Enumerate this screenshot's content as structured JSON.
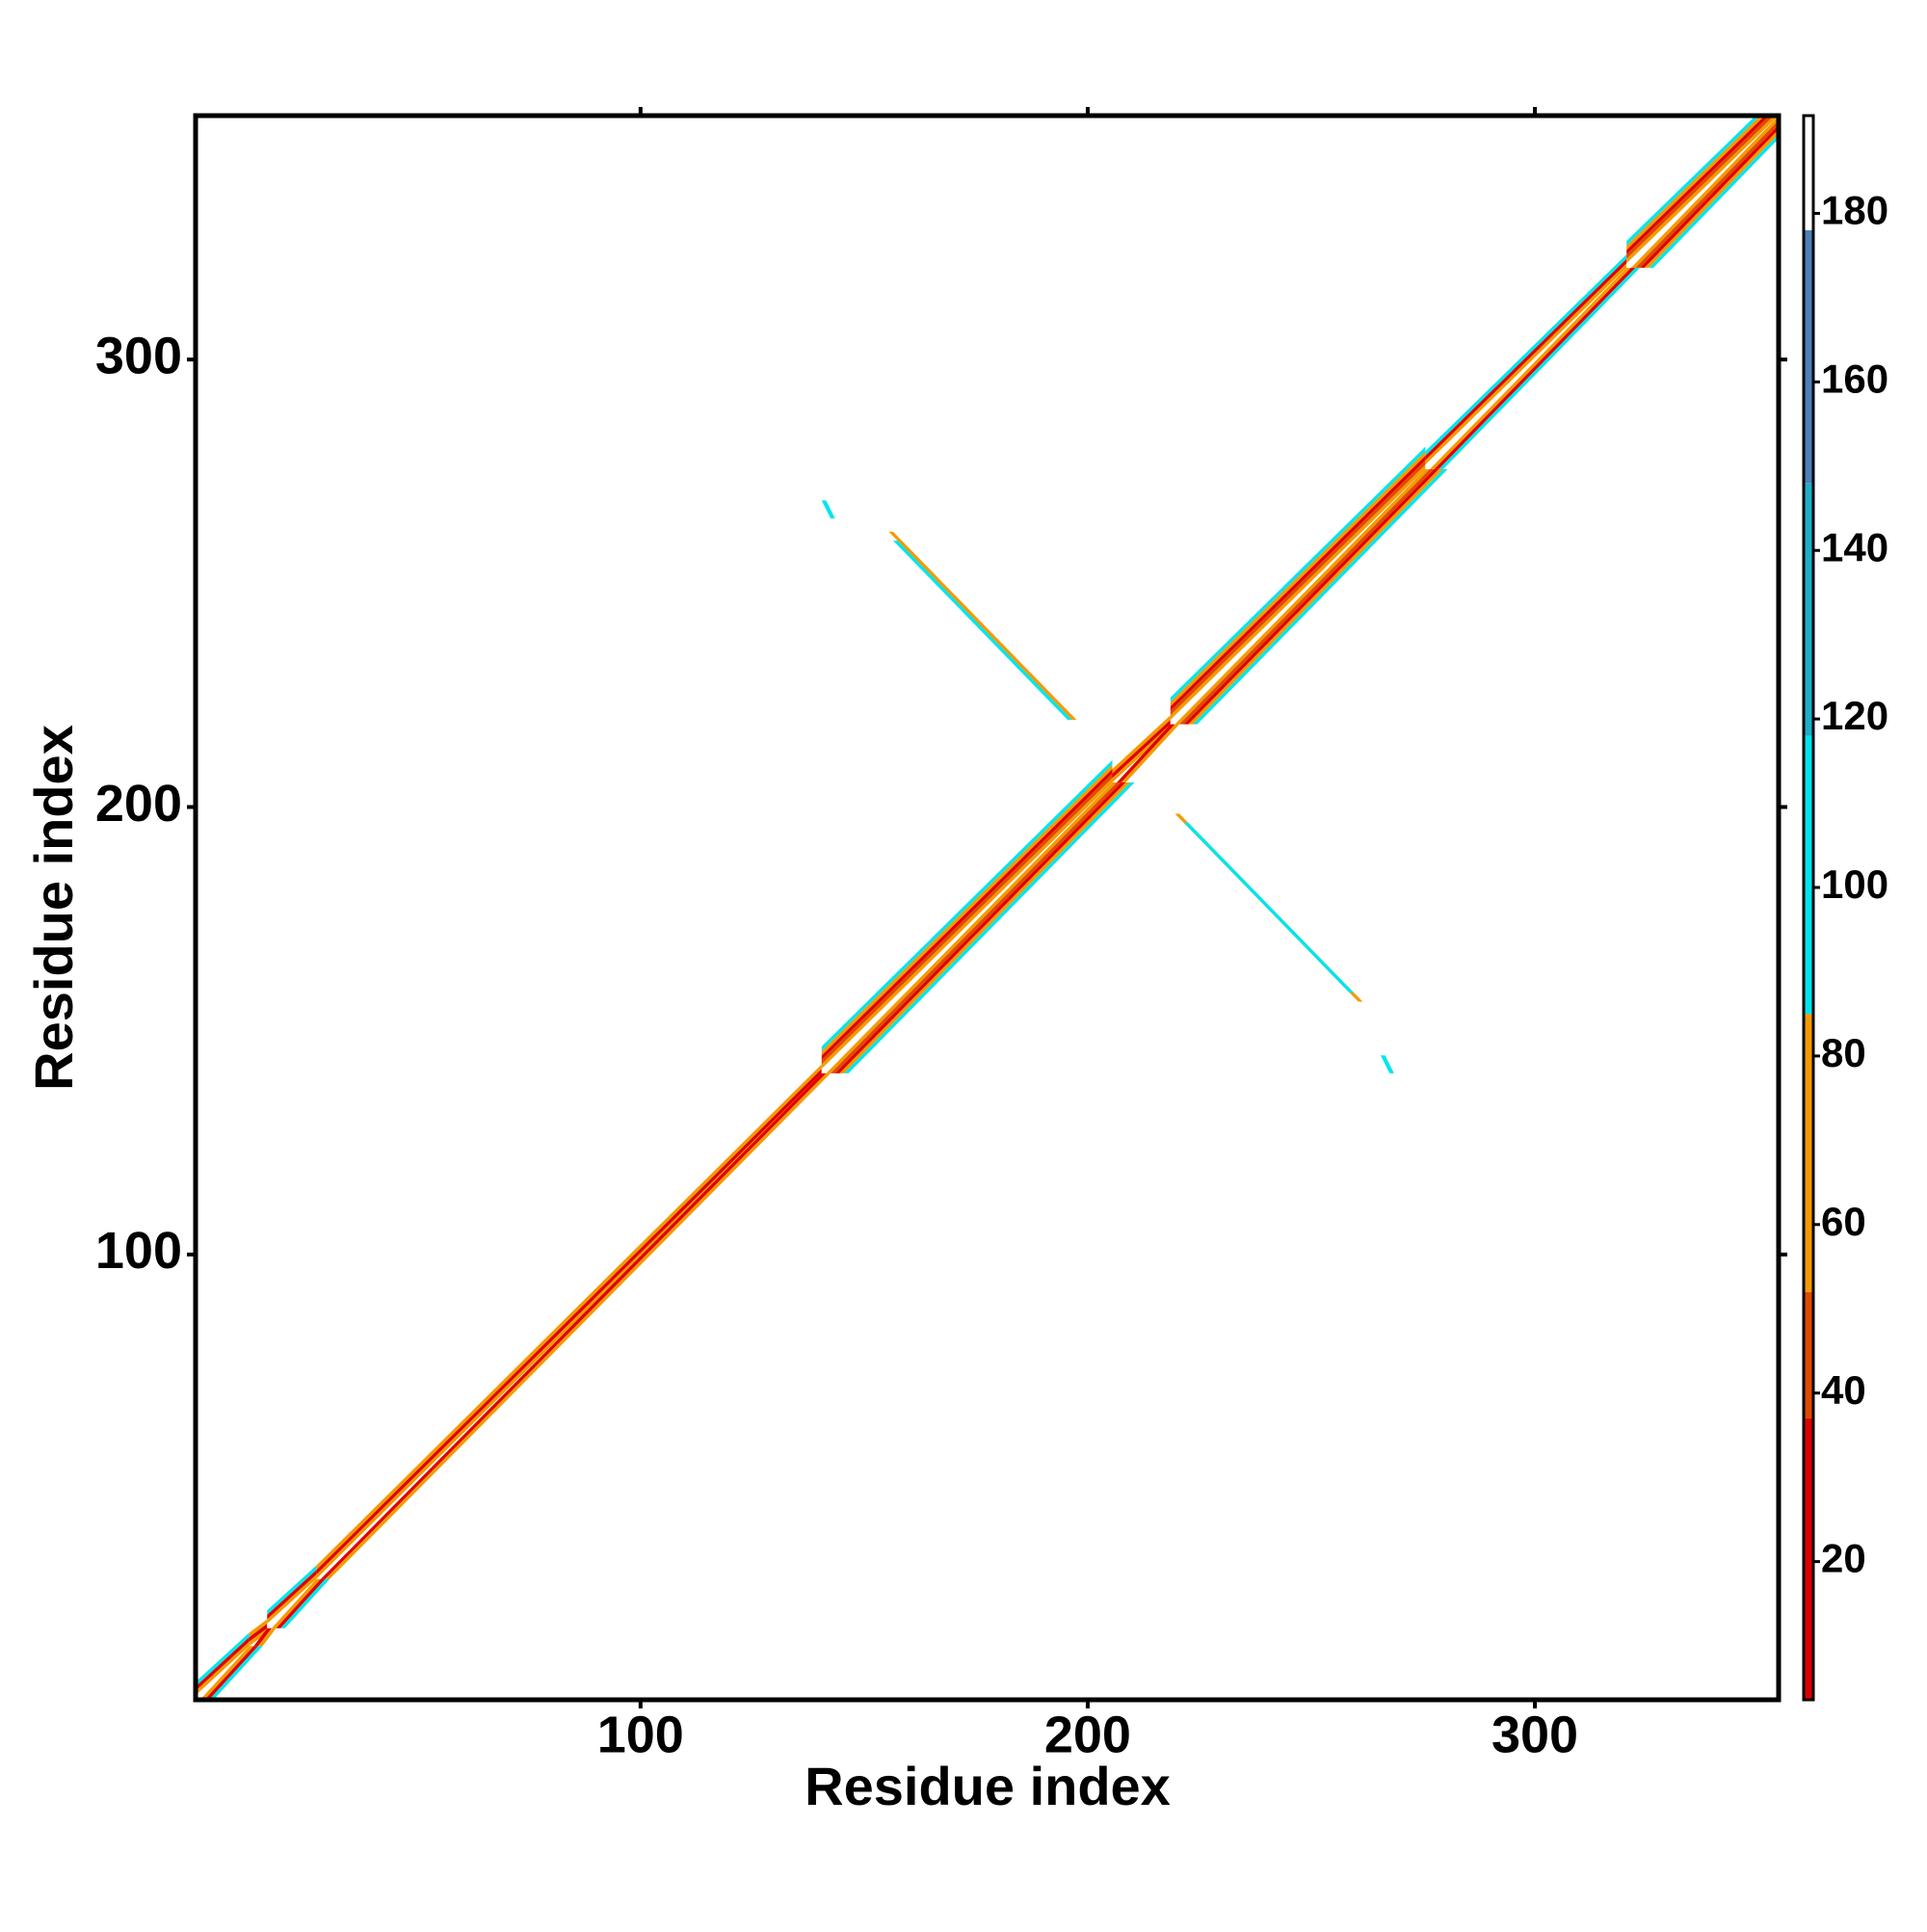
{
  "chart_data": {
    "type": "heatmap",
    "x_label": "Residue index",
    "y_label": "Residue index",
    "xlim": [
      0.5,
      354.5
    ],
    "ylim": [
      0.5,
      354.5
    ],
    "xticks": [
      100,
      200,
      300
    ],
    "yticks": [
      100,
      200,
      300
    ],
    "color_bounds": [
      3.6,
      37,
      52,
      85,
      118,
      148,
      178,
      191.6
    ],
    "colors": [
      "#e00000",
      "#e04a00",
      "#f59a00",
      "#00e5ee",
      "#20aec8",
      "#4f7fb8",
      "#ffffff"
    ],
    "colorbar_ticks": [
      20,
      40,
      60,
      80,
      100,
      120,
      140,
      160,
      180
    ],
    "diagonal_runs": [
      {
        "from": 1,
        "to": 12,
        "values": [
          186,
          60,
          30,
          95
        ]
      },
      {
        "from": 13,
        "to": 16,
        "values": [
          70,
          20,
          60
        ]
      },
      {
        "from": 17,
        "to": 27,
        "values": [
          186,
          60,
          30,
          95
        ]
      },
      {
        "from": 28,
        "to": 140,
        "values": [
          70,
          20,
          60
        ]
      },
      {
        "from": 141,
        "to": 205,
        "values": [
          186,
          62,
          45,
          30,
          70,
          100
        ]
      },
      {
        "from": 206,
        "to": 218,
        "values": [
          70,
          20,
          60
        ]
      },
      {
        "from": 219,
        "to": 275,
        "values": [
          186,
          62,
          45,
          30,
          70,
          100
        ]
      },
      {
        "from": 276,
        "to": 320,
        "values": [
          186,
          60,
          30,
          95
        ]
      },
      {
        "from": 321,
        "to": 354,
        "values": [
          186,
          62,
          45,
          30,
          70,
          100
        ]
      }
    ],
    "strands": [
      {
        "x": [
          156,
          197
        ],
        "y": [
          261,
          220
        ],
        "value": 65
      },
      {
        "x": [
          157,
          196
        ],
        "y": [
          259,
          220
        ],
        "value": 100
      },
      {
        "x": [
          220,
          261
        ],
        "y": [
          198,
          157
        ],
        "value": 65
      },
      {
        "x": [
          222,
          259
        ],
        "y": [
          196,
          159
        ],
        "value": 100
      },
      {
        "x": [
          141,
          143
        ],
        "y": [
          268,
          265
        ],
        "value": 100
      },
      {
        "x": [
          266,
          268
        ],
        "y": [
          144,
          141
        ],
        "value": 100
      }
    ]
  }
}
